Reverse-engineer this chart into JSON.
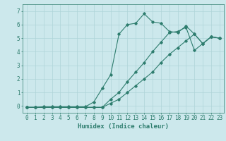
{
  "xlabel": "Humidex (Indice chaleur)",
  "x_values": [
    0,
    1,
    2,
    3,
    4,
    5,
    6,
    7,
    8,
    9,
    10,
    11,
    12,
    13,
    14,
    15,
    16,
    17,
    18,
    19,
    20,
    21,
    22,
    23
  ],
  "line1": [
    -0.1,
    -0.1,
    -0.1,
    -0.1,
    -0.1,
    -0.1,
    -0.1,
    -0.1,
    -0.1,
    -0.1,
    0.2,
    0.5,
    1.0,
    1.5,
    2.0,
    2.5,
    3.2,
    3.8,
    4.3,
    4.8,
    5.3,
    4.6,
    5.1,
    5.0
  ],
  "line2": [
    -0.1,
    -0.1,
    -0.1,
    -0.1,
    -0.1,
    -0.1,
    -0.1,
    -0.1,
    -0.1,
    -0.1,
    0.5,
    1.0,
    1.8,
    2.5,
    3.2,
    4.0,
    4.7,
    5.4,
    5.5,
    5.8,
    4.1,
    4.6,
    5.1,
    5.0
  ],
  "line3": [
    -0.1,
    -0.1,
    -0.05,
    -0.05,
    -0.05,
    -0.05,
    -0.05,
    -0.05,
    0.3,
    1.3,
    2.3,
    5.3,
    6.0,
    6.1,
    6.8,
    6.2,
    6.1,
    5.5,
    5.4,
    5.9,
    5.3,
    4.6,
    5.1,
    5.0
  ],
  "line_color": "#2e7d6e",
  "bg_color": "#cce8ec",
  "grid_color": "#afd4d8",
  "ylim": [
    -0.5,
    7.5
  ],
  "xlim": [
    -0.5,
    23.5
  ],
  "yticks": [
    0,
    1,
    2,
    3,
    4,
    5,
    6,
    7
  ],
  "xticks": [
    0,
    1,
    2,
    3,
    4,
    5,
    6,
    7,
    8,
    9,
    10,
    11,
    12,
    13,
    14,
    15,
    16,
    17,
    18,
    19,
    20,
    21,
    22,
    23
  ],
  "marker": "D",
  "markersize": 1.8,
  "linewidth": 0.8,
  "xlabel_fontsize": 6.5,
  "tick_fontsize": 5.5
}
